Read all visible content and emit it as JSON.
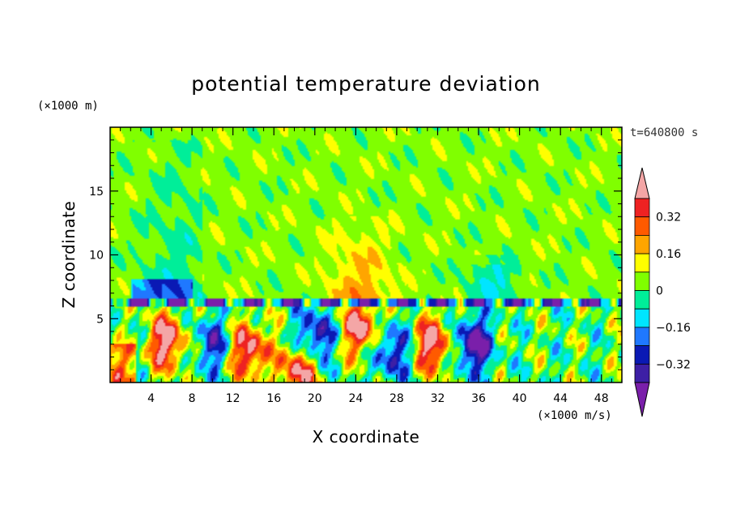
{
  "chart_data": {
    "type": "heatmap",
    "title": "potential temperature deviation",
    "xlabel": "X coordinate",
    "ylabel": "Z coordinate",
    "x_unit": "(×1000 m/s)",
    "y_unit": "(×1000 m)",
    "time_label": "t=640800 s",
    "xlim": [
      0,
      50
    ],
    "ylim": [
      0,
      20
    ],
    "x_ticks": [
      4,
      8,
      12,
      16,
      20,
      24,
      28,
      32,
      36,
      40,
      44,
      48
    ],
    "y_ticks": [
      5,
      10,
      15
    ],
    "inversion_height": 6.3,
    "colorbar": {
      "levels": [
        -0.4,
        -0.32,
        -0.24,
        -0.16,
        -0.08,
        0,
        0.08,
        0.16,
        0.24,
        0.32,
        0.4
      ],
      "labels": [
        "0.32",
        "0.16",
        "0",
        "−0.16",
        "−0.32"
      ],
      "label_values": [
        0.32,
        0.16,
        0,
        -0.16,
        -0.32
      ],
      "colors": [
        "#7a1faa",
        "#3d1fa5",
        "#0a19b4",
        "#1f78ff",
        "#00e5ff",
        "#00ee99",
        "#80ff00",
        "#ffff00",
        "#ffa500",
        "#ff5a00",
        "#ee2222",
        "#f4a6a6"
      ],
      "extend": "both"
    },
    "features": [
      {
        "x": 5.5,
        "z": 3.2,
        "value": 0.45
      },
      {
        "x": 13.5,
        "z": 2.5,
        "value": 0.45
      },
      {
        "x": 18.5,
        "z": 1.0,
        "value": 0.45
      },
      {
        "x": 24.5,
        "z": 4.3,
        "value": 0.45
      },
      {
        "x": 31.5,
        "z": 3.0,
        "value": 0.45
      },
      {
        "x": 35.5,
        "z": 3.0,
        "value": -0.45
      },
      {
        "x": 20.0,
        "z": 3.5,
        "value": -0.4
      },
      {
        "x": 10.0,
        "z": 3.0,
        "value": -0.3
      },
      {
        "x": 27.5,
        "z": 2.5,
        "value": -0.35
      },
      {
        "x": 25.5,
        "z": 10.0,
        "value": 0.18
      },
      {
        "x": 36.0,
        "z": 15.0,
        "value": 0.05
      }
    ]
  }
}
